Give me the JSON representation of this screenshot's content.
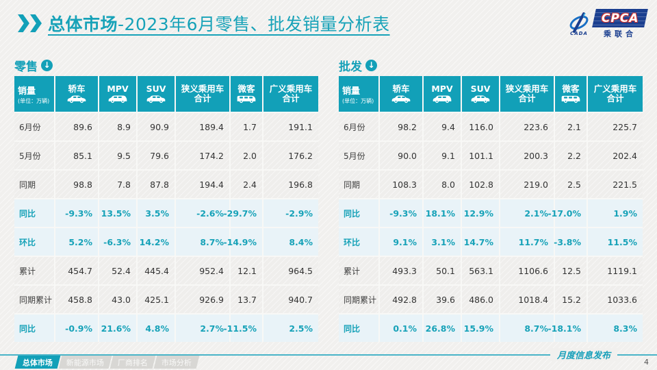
{
  "page": {
    "title_bold": "总体市场",
    "title_rest": "-2023年6月零售、批发销量分析表",
    "footer_note": "月度信息发布",
    "page_number": "4",
    "watermark": "CPCA 乘联会"
  },
  "logo": {
    "cpca": "CPCA",
    "cada": "CADA",
    "sub": "乘联合"
  },
  "icons": {
    "section_arrow": "↓"
  },
  "footer_tabs": [
    {
      "label": "总体市场",
      "active": true
    },
    {
      "label": "新能源市场",
      "active": false
    },
    {
      "label": "厂商排名",
      "active": false
    },
    {
      "label": "市场分析",
      "active": false
    }
  ],
  "columns": {
    "first_title": "销量",
    "first_sub": "(单位：万辆)",
    "cols": [
      {
        "key": "sedan",
        "label": "轿车",
        "icon": "sedan-icon"
      },
      {
        "key": "mpv",
        "label": "MPV",
        "icon": "mpv-icon"
      },
      {
        "key": "suv",
        "label": "SUV",
        "icon": "suv-icon"
      },
      {
        "key": "narrow-pv-total",
        "label": "狭义乘用车",
        "label2": "合计"
      },
      {
        "key": "microvan",
        "label": "微客",
        "icon": "van-icon"
      },
      {
        "key": "broad-pv-total",
        "label": "广义乘用车",
        "label2": "合计"
      }
    ]
  },
  "tables": [
    {
      "name": "retail",
      "section_label": "零售",
      "rows": [
        {
          "label": "6月份",
          "type": "data",
          "values": [
            "89.6",
            "8.9",
            "90.9",
            "189.4",
            "1.7",
            "191.1"
          ]
        },
        {
          "label": "5月份",
          "type": "data",
          "values": [
            "85.1",
            "9.5",
            "79.6",
            "174.2",
            "2.0",
            "176.2"
          ]
        },
        {
          "label": "同期",
          "type": "data",
          "values": [
            "98.8",
            "7.8",
            "87.8",
            "194.4",
            "2.4",
            "196.8"
          ]
        },
        {
          "label": "同比",
          "type": "pct",
          "values": [
            "-9.3%",
            "13.5%",
            "3.5%",
            "-2.6%",
            "-29.7%",
            "-2.9%"
          ]
        },
        {
          "label": "环比",
          "type": "pct",
          "values": [
            "5.2%",
            "-6.3%",
            "14.2%",
            "8.7%",
            "-14.9%",
            "8.4%"
          ]
        },
        {
          "label": "累计",
          "type": "data",
          "values": [
            "454.7",
            "52.4",
            "445.4",
            "952.4",
            "12.1",
            "964.5"
          ]
        },
        {
          "label": "同期累计",
          "type": "data",
          "values": [
            "458.8",
            "43.0",
            "425.1",
            "926.9",
            "13.7",
            "940.7"
          ]
        },
        {
          "label": "同比",
          "type": "pct",
          "values": [
            "-0.9%",
            "21.6%",
            "4.8%",
            "2.7%",
            "-11.5%",
            "2.5%"
          ]
        }
      ]
    },
    {
      "name": "wholesale",
      "section_label": "批发",
      "rows": [
        {
          "label": "6月份",
          "type": "data",
          "values": [
            "98.2",
            "9.4",
            "116.0",
            "223.6",
            "2.1",
            "225.7"
          ]
        },
        {
          "label": "5月份",
          "type": "data",
          "values": [
            "90.0",
            "9.1",
            "101.1",
            "200.3",
            "2.2",
            "202.4"
          ]
        },
        {
          "label": "同期",
          "type": "data",
          "values": [
            "108.3",
            "8.0",
            "102.8",
            "219.0",
            "2.5",
            "221.5"
          ]
        },
        {
          "label": "同比",
          "type": "pct",
          "values": [
            "-9.3%",
            "18.1%",
            "12.9%",
            "2.1%",
            "-17.0%",
            "1.9%"
          ]
        },
        {
          "label": "环比",
          "type": "pct",
          "values": [
            "9.1%",
            "3.1%",
            "14.7%",
            "11.7%",
            "-3.8%",
            "11.5%"
          ]
        },
        {
          "label": "累计",
          "type": "data",
          "values": [
            "493.3",
            "50.1",
            "563.1",
            "1106.6",
            "12.5",
            "1119.1"
          ]
        },
        {
          "label": "同期累计",
          "type": "data",
          "values": [
            "492.8",
            "39.6",
            "486.0",
            "1018.4",
            "15.2",
            "1033.6"
          ]
        },
        {
          "label": "同比",
          "type": "pct",
          "values": [
            "0.1%",
            "26.8%",
            "15.9%",
            "8.7%",
            "-18.1%",
            "8.3%"
          ]
        }
      ]
    }
  ],
  "colors": {
    "teal_header": "#12a0b8",
    "teal_text": "#17a2b8",
    "row_gray": "#efeeec",
    "row_blue": "#e9f3f8",
    "tab_inactive": "#d8d7d4",
    "logo_navy": "#1b3f8f",
    "logo_red": "#d0312d"
  }
}
